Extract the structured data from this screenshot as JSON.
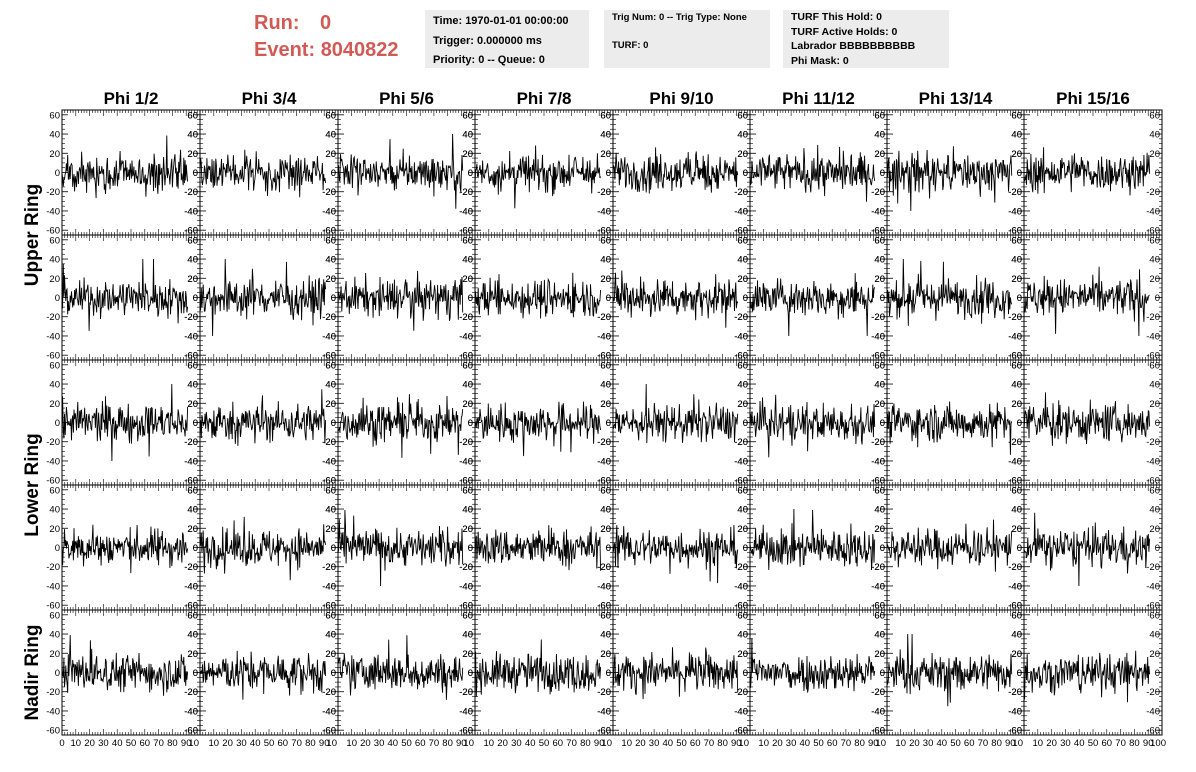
{
  "header": {
    "run_label": "Run:",
    "run_value": "0",
    "event_label": "Event:",
    "event_value": "8040822"
  },
  "info_time": {
    "time": "Time: 1970-01-01 00:00:00",
    "trigger": "Trigger: 0.000000 ms",
    "priority": "Priority: 0 -- Queue: 0"
  },
  "info_trig": {
    "trig": "Trig Num: 0 -- Trig Type: None",
    "turf": "TURF: 0"
  },
  "info_turf": {
    "this_hold": "TURF This Hold: 0",
    "active_holds": "TURF Active Holds: 0",
    "labrador": "Labrador BBBBBBBBBB",
    "phi_mask": "Phi Mask: 0"
  },
  "chart_data": {
    "type": "line",
    "columns": [
      "Phi 1/2",
      "Phi 3/4",
      "Phi 5/6",
      "Phi 7/8",
      "Phi 9/10",
      "Phi 11/12",
      "Phi 13/14",
      "Phi 15/16"
    ],
    "row_groups": [
      {
        "label": "Upper Ring",
        "rows": 2
      },
      {
        "label": "Lower Ring",
        "rows": 2
      },
      {
        "label": "Nadir Ring",
        "rows": 1
      }
    ],
    "xlim": [
      0,
      100
    ],
    "ylim": [
      -65,
      65
    ],
    "y_ticks": [
      -60,
      -40,
      -20,
      0,
      20,
      40,
      60
    ],
    "x_ticks": [
      0,
      10,
      20,
      30,
      40,
      50,
      60,
      70,
      80,
      90,
      100
    ],
    "x_tick_labels_first": [
      "0",
      "10",
      "20",
      "30",
      "40",
      "50",
      "60",
      "70",
      "80",
      "90",
      "10"
    ],
    "x_tick_labels_mid": [
      "0",
      "10",
      "20",
      "30",
      "40",
      "50",
      "60",
      "70",
      "80",
      "90",
      "10"
    ],
    "x_tick_labels_last": [
      "0",
      "10",
      "20",
      "30",
      "40",
      "50",
      "60",
      "70",
      "80",
      "90",
      "100"
    ],
    "waveform": {
      "x_start": 0,
      "x_end": 91,
      "samples": 200,
      "typical_amplitude": 12,
      "peak_amplitude": 40
    },
    "line_color": "#000000"
  }
}
